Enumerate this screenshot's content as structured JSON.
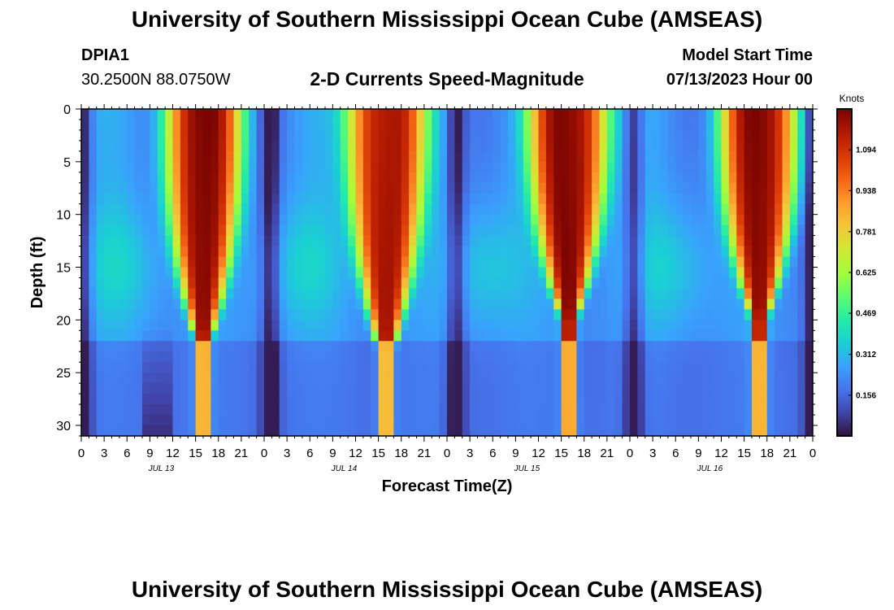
{
  "header": {
    "title": "University of Southern Mississippi Ocean Cube (AMSEAS)",
    "station_id": "DPIA1",
    "station_coords": "30.2500N  88.0750W",
    "plot_subtitle": "2-D Currents Speed-Magnitude",
    "model_start_label": "Model Start Time",
    "model_start_value": "07/13/2023 Hour 00"
  },
  "footer": {
    "title": "University of Southern Mississippi Ocean Cube (AMSEAS)"
  },
  "colors": {
    "colormap": [
      "#30123b",
      "#4145ab",
      "#4675ed",
      "#39a2fc",
      "#1bcfd4",
      "#24eca6",
      "#61fc6c",
      "#a4fc3b",
      "#d1e834",
      "#f3c63a",
      "#fe9b2d",
      "#f36315",
      "#d93806",
      "#b11901",
      "#7a0403"
    ]
  },
  "chart_data": {
    "type": "heatmap",
    "title": "2-D Currents Speed-Magnitude",
    "xlabel": "Forecast Time(Z)",
    "ylabel": "Depth (ft)",
    "x_ticks": [
      "0",
      "3",
      "6",
      "9",
      "12",
      "15",
      "18",
      "21",
      "0",
      "3",
      "6",
      "9",
      "12",
      "15",
      "18",
      "21",
      "0",
      "3",
      "6",
      "9",
      "12",
      "15",
      "18",
      "21",
      "0",
      "3",
      "6",
      "9",
      "12",
      "15",
      "18",
      "21",
      "0"
    ],
    "day_labels": [
      "JUL 13",
      "JUL 14",
      "JUL 15",
      "JUL 16"
    ],
    "x_range_hours": [
      0,
      96
    ],
    "y_ticks": [
      "0",
      "5",
      "10",
      "15",
      "20",
      "25",
      "30"
    ],
    "y_range_ft": [
      0,
      31
    ],
    "colorbar": {
      "unit": "Knots",
      "min": 0.0,
      "max": 1.25,
      "ticks": [
        "0.156",
        "0.312",
        "0.469",
        "0.625",
        "0.781",
        "0.938",
        "1.094"
      ]
    },
    "high_speed_cores": [
      {
        "day": "JUL 13",
        "peak_hour": 18,
        "max_depth_ft": 22,
        "peak_knots": 1.2
      },
      {
        "day": "JUL 14",
        "peak_hour": 18,
        "max_depth_ft": 23,
        "peak_knots": 1.2
      },
      {
        "day": "JUL 15",
        "peak_hour": 18,
        "max_depth_ft": 20,
        "peak_knots": 1.25
      },
      {
        "day": "JUL 16",
        "peak_hour": 19,
        "max_depth_ft": 20,
        "peak_knots": 1.2
      }
    ]
  }
}
